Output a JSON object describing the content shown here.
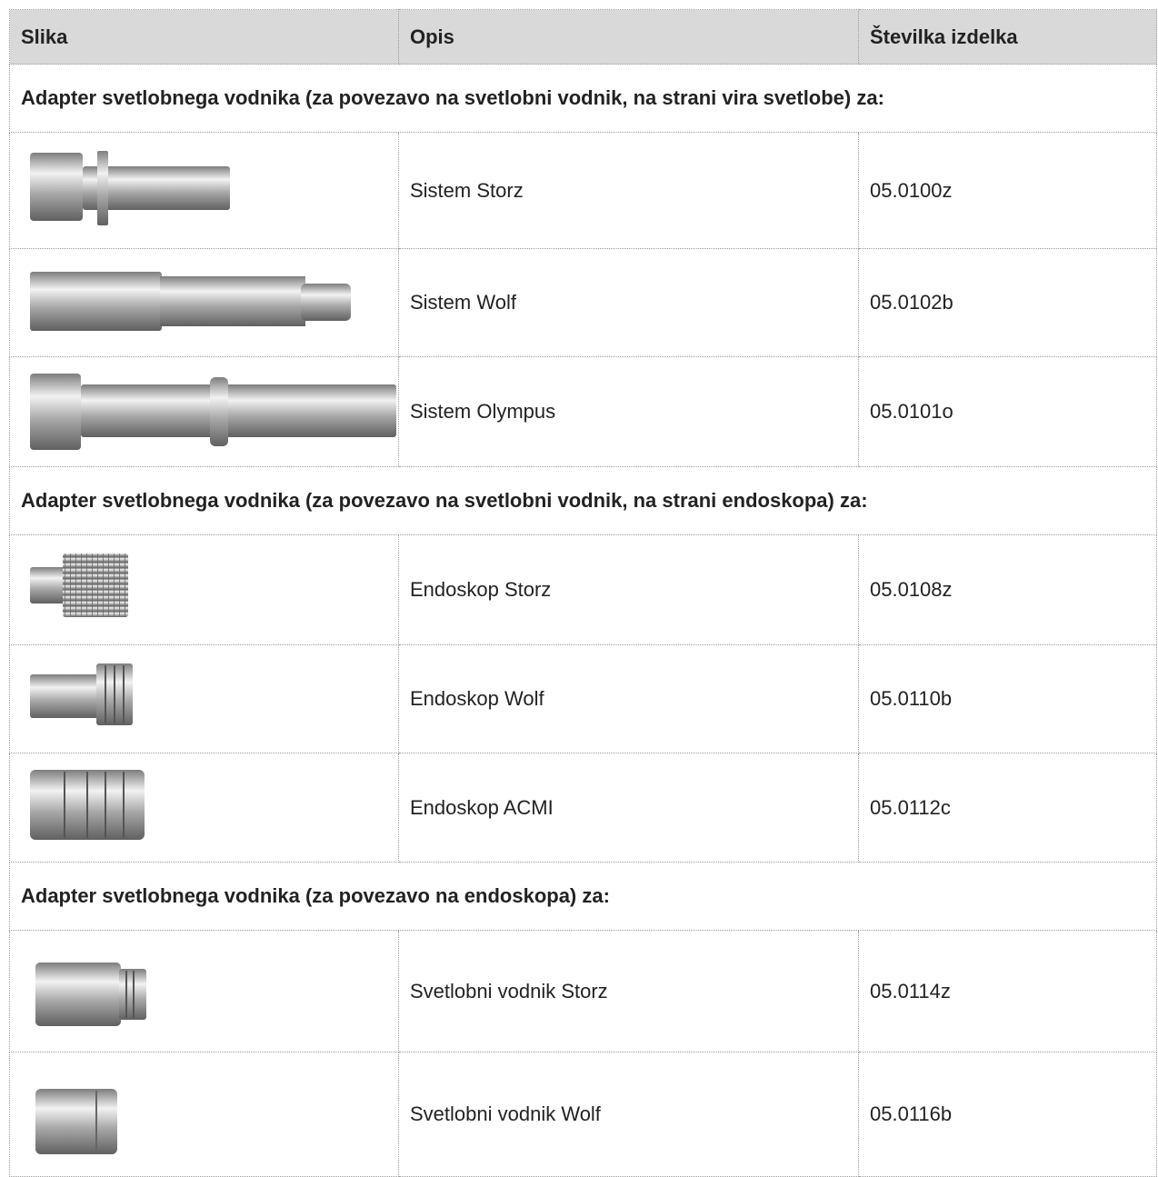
{
  "table": {
    "header": [
      "Slika",
      "Opis",
      "Številka izdelka"
    ],
    "sections": [
      {
        "title": "Adapter svetlobnega vodnika (za povezavo na svetlobni vodnik, na strani vira svetlobe) za:",
        "rows": [
          {
            "description": "Sistem Storz",
            "article": "05.0100z"
          },
          {
            "description": "Sistem Wolf",
            "article": "05.0102b"
          },
          {
            "description": "Sistem Olympus",
            "article": "05.0101o"
          }
        ]
      },
      {
        "title": "Adapter svetlobnega vodnika (za povezavo na svetlobni vodnik, na strani endoskopa) za:",
        "rows": [
          {
            "description": "Endoskop Storz",
            "article": "05.0108z"
          },
          {
            "description": "Endoskop Wolf",
            "article": "05.0110b"
          },
          {
            "description": "Endoskop ACMI",
            "article": "05.0112c"
          }
        ]
      },
      {
        "title": "Adapter svetlobnega vodnika (za povezavo na endoskopa) za:",
        "rows": [
          {
            "description": "Svetlobni vodnik Storz",
            "article": "05.0114z"
          },
          {
            "description": "Svetlobni vodnik Wolf",
            "article": "05.0116b"
          }
        ]
      }
    ]
  }
}
